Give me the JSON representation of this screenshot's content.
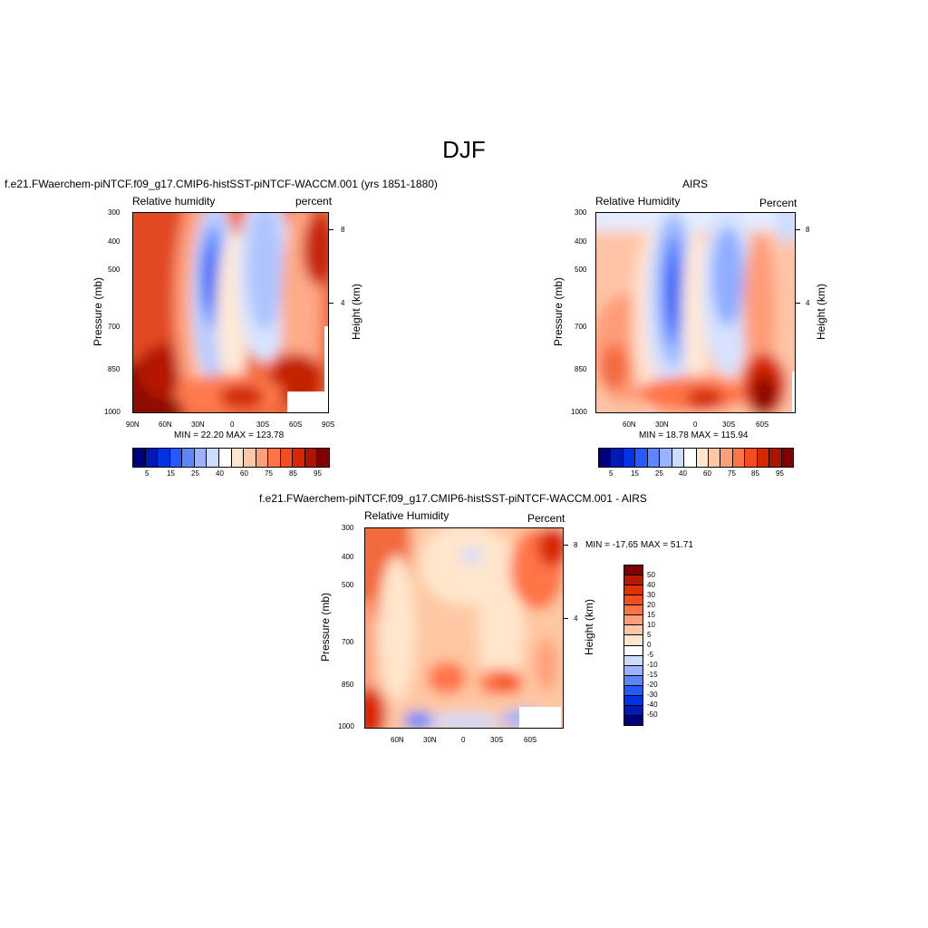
{
  "figure": {
    "title": "DJF"
  },
  "panel1": {
    "title": "f.e21.FWaerchem-piNTCF.f09_g17.CMIP6-histSST-piNTCF-WACCM.001 (yrs 1851-1880)",
    "left_label": "Relative humidity",
    "right_label": "percent",
    "ylabel": "Pressure (mb)",
    "ylabel_right": "Height (km)",
    "stats": "MIN =  22.20  MAX = 123.78",
    "pressure_ticks": [
      "300",
      "400",
      "500",
      "700",
      "850",
      "1000"
    ],
    "height_ticks": [
      "8",
      "4"
    ],
    "lat_ticks": [
      "90N",
      "60N",
      "30N",
      "0",
      "30S",
      "60S",
      "90S"
    ],
    "colorbar_labels": [
      "5",
      "15",
      "25",
      "40",
      "60",
      "75",
      "85",
      "95"
    ]
  },
  "panel2": {
    "title": "AIRS",
    "left_label": "Relative Humidity",
    "right_label": "Percent",
    "ylabel": "Pressure (mb)",
    "ylabel_right": "Height (km)",
    "stats": "MIN =  18.78  MAX = 115.94",
    "pressure_ticks": [
      "300",
      "400",
      "500",
      "700",
      "850",
      "1000"
    ],
    "height_ticks": [
      "8",
      "4"
    ],
    "lat_ticks": [
      "60N",
      "30N",
      "0",
      "30S",
      "60S"
    ],
    "colorbar_labels": [
      "5",
      "15",
      "25",
      "40",
      "60",
      "75",
      "85",
      "95"
    ]
  },
  "panel3": {
    "title": "f.e21.FWaerchem-piNTCF.f09_g17.CMIP6-histSST-piNTCF-WACCM.001 - AIRS",
    "left_label": "Relative Humidity",
    "right_label": "Percent",
    "ylabel": "Pressure (mb)",
    "ylabel_right": "Height (km)",
    "stats": "MIN = -17.65  MAX =  51.71",
    "pressure_ticks": [
      "300",
      "400",
      "500",
      "700",
      "850",
      "1000"
    ],
    "height_ticks": [
      "8",
      "4"
    ],
    "lat_ticks": [
      "60N",
      "30N",
      "0",
      "30S",
      "60S"
    ],
    "colorbar_labels": [
      "50",
      "40",
      "30",
      "20",
      "15",
      "10",
      "5",
      "0",
      "-5",
      "-10",
      "-15",
      "-20",
      "-30",
      "-40",
      "-50"
    ]
  },
  "colors": {
    "abs_scale": [
      "#00007f",
      "#001ab3",
      "#0033e6",
      "#2659ff",
      "#5c85ff",
      "#99b3ff",
      "#ccdcff",
      "#ffffff",
      "#ffe6cc",
      "#ffc7a3",
      "#ff9f7a",
      "#ff7447",
      "#f24d1f",
      "#d92600",
      "#ad1400",
      "#7f0000"
    ],
    "diff_scale": [
      "#7f0000",
      "#b31a00",
      "#e03300",
      "#f24d1f",
      "#ff7447",
      "#ff9f7a",
      "#ffc7a3",
      "#ffe6cc",
      "#ccdcff",
      "#99b3ff",
      "#5c85ff",
      "#2659ff",
      "#0033e6",
      "#001ab3",
      "#00007f"
    ]
  },
  "chart_data": [
    {
      "type": "heatmap",
      "title": "f.e21.FWaerchem-piNTCF.f09_g17.CMIP6-histSST-piNTCF-WACCM.001 (yrs 1851-1880)",
      "xlabel": "",
      "ylabel": "Pressure (mb)",
      "x_ticks": [
        "90N",
        "60N",
        "30N",
        "0",
        "30S",
        "60S",
        "90S"
      ],
      "y_ticks": [
        300,
        400,
        500,
        700,
        850,
        1000
      ],
      "y_scale": "log",
      "ylim": [
        1000,
        300
      ],
      "variable": "Relative humidity",
      "units": "percent",
      "min": 22.2,
      "max": 123.78,
      "levels": [
        5,
        10,
        15,
        20,
        25,
        30,
        40,
        50,
        60,
        70,
        75,
        80,
        85,
        90,
        95
      ]
    },
    {
      "type": "heatmap",
      "title": "AIRS",
      "ylabel": "Pressure (mb)",
      "x_ticks": [
        "60N",
        "30N",
        "0",
        "30S",
        "60S"
      ],
      "y_ticks": [
        300,
        400,
        500,
        700,
        850,
        1000
      ],
      "y_scale": "log",
      "ylim": [
        1000,
        300
      ],
      "variable": "Relative Humidity",
      "units": "Percent",
      "min": 18.78,
      "max": 115.94,
      "levels": [
        5,
        10,
        15,
        20,
        25,
        30,
        40,
        50,
        60,
        70,
        75,
        80,
        85,
        90,
        95
      ]
    },
    {
      "type": "heatmap",
      "title": "f.e21.FWaerchem-piNTCF.f09_g17.CMIP6-histSST-piNTCF-WACCM.001 - AIRS",
      "ylabel": "Pressure (mb)",
      "x_ticks": [
        "60N",
        "30N",
        "0",
        "30S",
        "60S"
      ],
      "y_ticks": [
        300,
        400,
        500,
        700,
        850,
        1000
      ],
      "y_scale": "log",
      "ylim": [
        1000,
        300
      ],
      "variable": "Relative Humidity",
      "units": "Percent",
      "min": -17.65,
      "max": 51.71,
      "levels": [
        50,
        40,
        30,
        20,
        15,
        10,
        5,
        0,
        -5,
        -10,
        -15,
        -20,
        -30,
        -40,
        -50
      ]
    }
  ]
}
